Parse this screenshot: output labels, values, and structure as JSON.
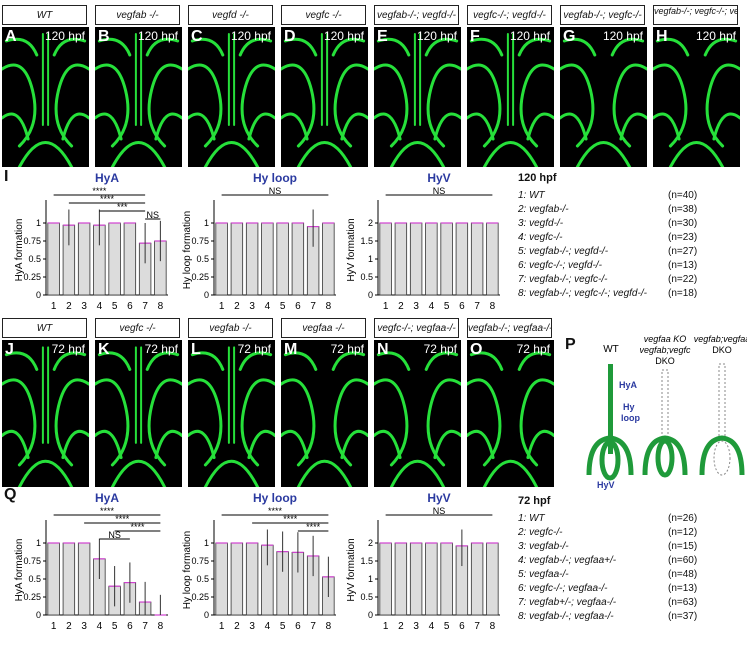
{
  "top_labels": [
    "WT",
    "vegfab -/-",
    "vegfd -/-",
    "vegfc -/-",
    "vegfab-/-; vegfd-/-",
    "vegfc-/-; vegfd-/-",
    "vegfab-/-; vegfc-/-",
    "vegfab-/-; vegfc-/-; vegfd-/-"
  ],
  "top_panels": [
    {
      "letter": "A",
      "time": "120 hpf"
    },
    {
      "letter": "B",
      "time": "120 hpf"
    },
    {
      "letter": "C",
      "time": "120 hpf"
    },
    {
      "letter": "D",
      "time": "120 hpf"
    },
    {
      "letter": "E",
      "time": "120 hpf"
    },
    {
      "letter": "F",
      "time": "120 hpf"
    },
    {
      "letter": "G",
      "time": "120 hpf"
    },
    {
      "letter": "H",
      "time": "120 hpf"
    }
  ],
  "mid_labels": [
    "WT",
    "vegfc -/-",
    "vegfab -/-",
    "vegfaa -/-",
    "vegfc-/-; vegfaa-/-",
    "vegfab-/-; vegfaa-/-"
  ],
  "mid_panels": [
    {
      "letter": "J",
      "time": "72 hpf"
    },
    {
      "letter": "K",
      "time": "72 hpf"
    },
    {
      "letter": "L",
      "time": "72 hpf"
    },
    {
      "letter": "M",
      "time": "72 hpf"
    },
    {
      "letter": "N",
      "time": "72 hpf"
    },
    {
      "letter": "O",
      "time": "72 hpf"
    }
  ],
  "section_letters": {
    "I": "I",
    "Q": "Q",
    "P": "P"
  },
  "legend_120": {
    "heading": "120 hpf",
    "rows": [
      {
        "label": "1: WT",
        "n": "(n=40)"
      },
      {
        "label": "2: vegfab-/-",
        "n": "(n=38)"
      },
      {
        "label": "3: vegfd-/-",
        "n": "(n=30)"
      },
      {
        "label": "4: vegfc-/-",
        "n": "(n=23)"
      },
      {
        "label": "5: vegfab-/-; vegfd-/-",
        "n": "(n=27)"
      },
      {
        "label": "6: vegfc-/-; vegfd-/-",
        "n": "(n=13)"
      },
      {
        "label": "7: vegfab-/-; vegfc-/-",
        "n": "(n=22)"
      },
      {
        "label": "8: vegfab-/-; vegfc-/-; vegfd-/-",
        "n": "(n=18)"
      }
    ]
  },
  "legend_72": {
    "heading": "72 hpf",
    "rows": [
      {
        "label": "1: WT",
        "n": "(n=26)"
      },
      {
        "label": "2: vegfc-/-",
        "n": "(n=12)"
      },
      {
        "label": "3: vegfab-/-",
        "n": "(n=15)"
      },
      {
        "label": "4: vegfab-/-; vegfaa+/-",
        "n": "(n=60)"
      },
      {
        "label": "5: vegfaa-/-",
        "n": "(n=48)"
      },
      {
        "label": "6: vegfc-/-; vegfaa-/-",
        "n": "(n=13)"
      },
      {
        "label": "7: vegfab+/-; vegfaa-/-",
        "n": "(n=63)"
      },
      {
        "label": "8: vegfab-/-; vegfaa-/-",
        "n": "(n=37)"
      }
    ]
  },
  "schematic": {
    "wt": "WT",
    "mid_title": "vegfaa KO",
    "mid_sub": "vegfab;vegfc",
    "mid_dko": "DKO",
    "right_title": "vegfab;vegfaa",
    "right_dko": "DKO",
    "hya": "HyA",
    "hy": "Hy",
    "loop": "loop",
    "hyv": "HyV"
  },
  "chart_data": [
    {
      "type": "bar",
      "title": "HyA",
      "ylabel": "HyA formation",
      "categories": [
        "1",
        "2",
        "3",
        "4",
        "5",
        "6",
        "7",
        "8"
      ],
      "values": [
        1,
        0.97,
        1,
        0.97,
        1,
        1,
        0.72,
        0.75
      ],
      "ylim": [
        0,
        1.25
      ],
      "yticks": [
        "0",
        "0.25",
        "0.5",
        "0.75",
        "1"
      ],
      "annotations": [
        "****",
        "****",
        "***",
        "NS"
      ]
    },
    {
      "type": "bar",
      "title": "Hy loop",
      "ylabel": "Hy loop formation",
      "categories": [
        "1",
        "2",
        "3",
        "4",
        "5",
        "6",
        "7",
        "8"
      ],
      "values": [
        1,
        1,
        1,
        1,
        1,
        1,
        0.95,
        1
      ],
      "ylim": [
        0,
        1.25
      ],
      "yticks": [
        "0",
        "0.25",
        "0.5",
        "0.75",
        "1"
      ],
      "annotations": [
        "NS"
      ]
    },
    {
      "type": "bar",
      "title": "HyV",
      "ylabel": "HyV formation",
      "categories": [
        "1",
        "2",
        "3",
        "4",
        "5",
        "6",
        "7",
        "8"
      ],
      "values": [
        2,
        2,
        2,
        2,
        2,
        2,
        2,
        2
      ],
      "ylim": [
        0,
        2.5
      ],
      "yticks": [
        "0",
        "0.5",
        "1",
        "1.5",
        "2"
      ],
      "annotations": [
        "NS"
      ]
    },
    {
      "type": "bar",
      "title": "HyA",
      "ylabel": "HyA formation",
      "categories": [
        "1",
        "2",
        "3",
        "4",
        "5",
        "6",
        "7",
        "8"
      ],
      "values": [
        1,
        1,
        1,
        0.78,
        0.4,
        0.45,
        0.18,
        0
      ],
      "ylim": [
        0,
        1.25
      ],
      "yticks": [
        "0",
        "0.25",
        "0.5",
        "0.75",
        "1"
      ],
      "annotations": [
        "****",
        "****",
        "****",
        "NS"
      ]
    },
    {
      "type": "bar",
      "title": "Hy loop",
      "ylabel": "Hy loop formation",
      "categories": [
        "1",
        "2",
        "3",
        "4",
        "5",
        "6",
        "7",
        "8"
      ],
      "values": [
        1,
        1,
        1,
        0.97,
        0.88,
        0.87,
        0.82,
        0.53
      ],
      "ylim": [
        0,
        1.25
      ],
      "yticks": [
        "0",
        "0.25",
        "0.5",
        "0.75",
        "1"
      ],
      "annotations": [
        "****",
        "****",
        "****"
      ]
    },
    {
      "type": "bar",
      "title": "HyV",
      "ylabel": "HyV formation",
      "categories": [
        "1",
        "2",
        "3",
        "4",
        "5",
        "6",
        "7",
        "8"
      ],
      "values": [
        2,
        2,
        2,
        2,
        2,
        1.92,
        2,
        2
      ],
      "ylim": [
        0,
        2.5
      ],
      "yticks": [
        "0",
        "0.5",
        "1",
        "1.5",
        "2"
      ],
      "annotations": [
        "NS"
      ]
    }
  ]
}
